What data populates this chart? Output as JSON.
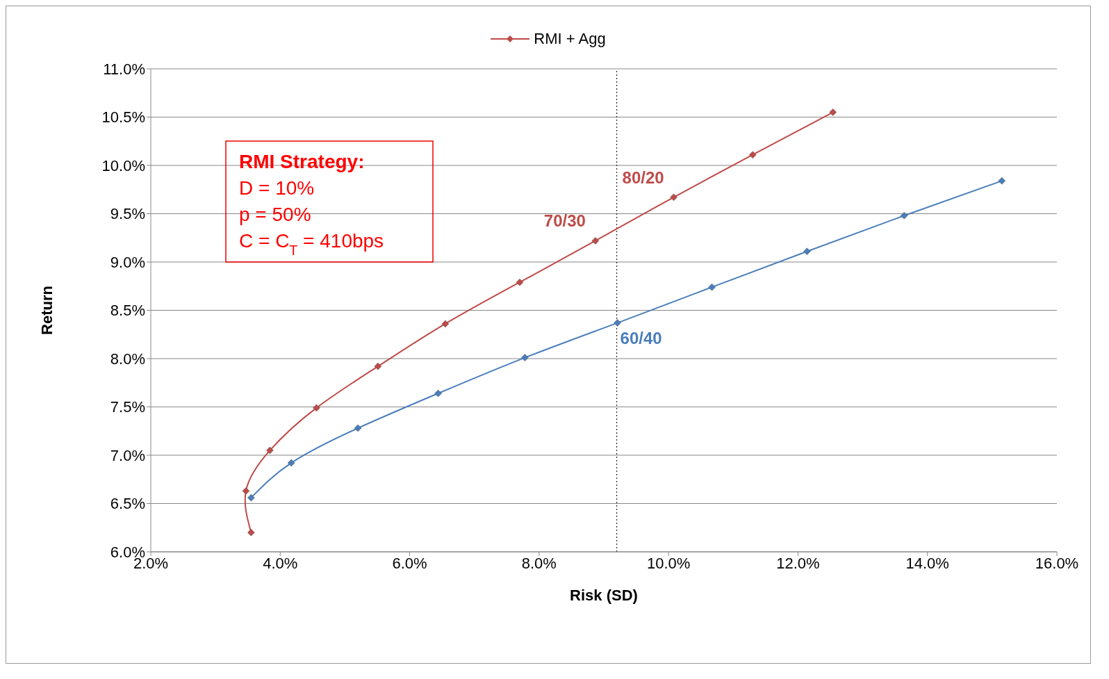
{
  "chart_data": {
    "type": "line",
    "xlabel": "Risk (SD)",
    "ylabel": "Return",
    "series": [
      {
        "color": "#4a7ebb",
        "x": [
          3.55,
          4.17,
          5.2,
          6.44,
          7.78,
          9.21,
          10.67,
          12.14,
          13.64,
          15.15
        ],
        "values": [
          6.56,
          6.92,
          7.28,
          7.64,
          8.01,
          8.37,
          8.74,
          9.11,
          9.48,
          9.84
        ]
      },
      {
        "name": "RMI + Agg",
        "color": "#be4b48",
        "x": [
          3.55,
          3.47,
          3.84,
          4.56,
          5.51,
          6.55,
          7.7,
          8.87,
          10.08,
          11.3,
          12.54
        ],
        "values": [
          6.2,
          6.63,
          7.05,
          7.49,
          7.92,
          8.36,
          8.79,
          9.22,
          9.67,
          10.11,
          10.55
        ]
      }
    ],
    "xlim": [
      2,
      16
    ],
    "xticks": [
      {
        "value": 2,
        "label": "2.0%"
      },
      {
        "value": 4,
        "label": "4.0%"
      },
      {
        "value": 6,
        "label": "6.0%"
      },
      {
        "value": 8,
        "label": "8.0%"
      },
      {
        "value": 10,
        "label": "10.0%"
      },
      {
        "value": 12,
        "label": "12.0%"
      },
      {
        "value": 14,
        "label": "14.0%"
      },
      {
        "value": 16,
        "label": "16.0%"
      }
    ],
    "ylim": [
      6,
      11
    ],
    "yticks": [
      {
        "value": 6,
        "label": "6.0%"
      },
      {
        "value": 6.5,
        "label": "6.5%"
      },
      {
        "value": 7,
        "label": "7.0%"
      },
      {
        "value": 7.5,
        "label": "7.5%"
      },
      {
        "value": 8,
        "label": "8.0%"
      },
      {
        "value": 8.5,
        "label": "8.5%"
      },
      {
        "value": 9,
        "label": "9.0%"
      },
      {
        "value": 9.5,
        "label": "9.5%"
      },
      {
        "value": 10,
        "label": "10.0%"
      },
      {
        "value": 10.5,
        "label": "10.5%"
      },
      {
        "value": 11,
        "label": "11.0%"
      }
    ],
    "ref_lines": [
      {
        "axis": "x",
        "value": 9.2,
        "color": "#000000",
        "line_style": "dotted"
      }
    ],
    "annotations": [
      "RMI Strategy:",
      "D = 10%",
      "p = 50%",
      "C = C$_{T}$ = 410bps",
      {
        "text": "80/20",
        "x": 10.08,
        "y": 9.67
      },
      {
        "text": "70/30",
        "x": 8.87,
        "y": 9.22
      },
      {
        "text": "60/40",
        "x": 9.21,
        "y": 8.37
      }
    ],
    "grid": "y",
    "legend": "top",
    "marker": "diamond",
    "line_style": "solid"
  }
}
